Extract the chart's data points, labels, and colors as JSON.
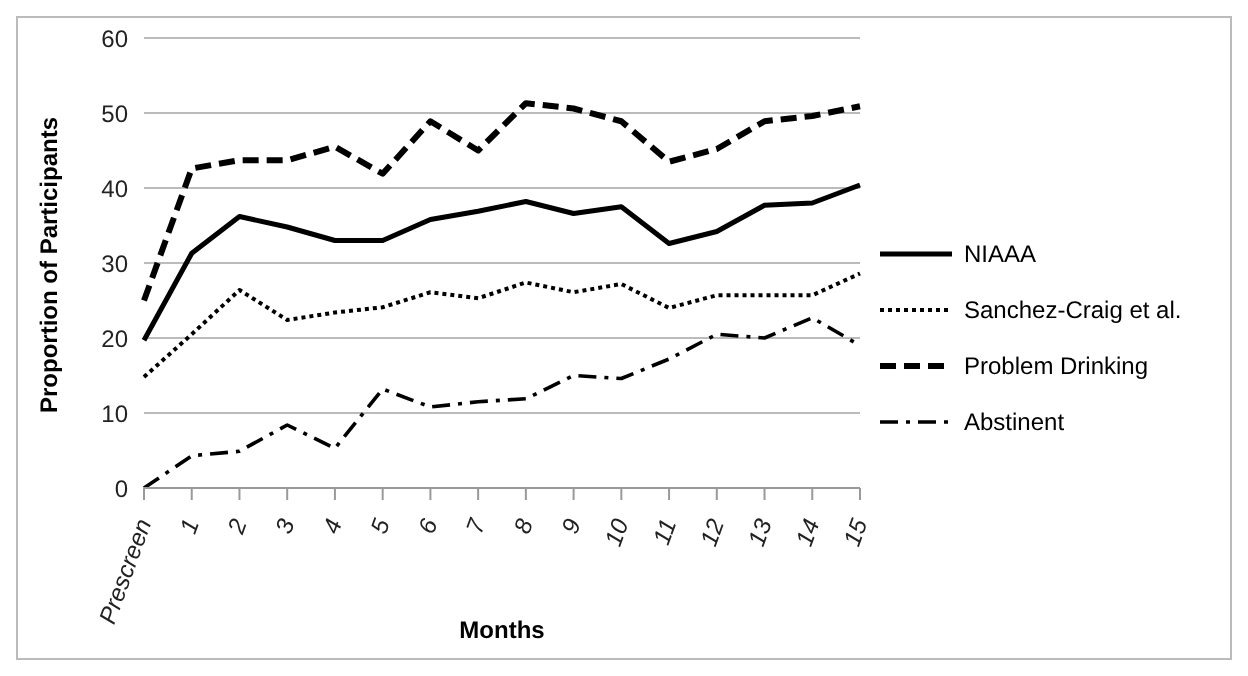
{
  "chart_data": {
    "type": "line",
    "xlabel": "Months",
    "ylabel": "Proportion of Participants",
    "categories": [
      "Prescreen",
      "1",
      "2",
      "3",
      "4",
      "5",
      "6",
      "7",
      "8",
      "9",
      "10",
      "11",
      "12",
      "13",
      "14",
      "15"
    ],
    "series": [
      {
        "name": "NIAAA",
        "color": "#000000",
        "line_style": "solid",
        "values": [
          19.7,
          31.3,
          36.2,
          34.8,
          33,
          33,
          35.8,
          36.9,
          38.2,
          36.6,
          37.5,
          32.6,
          34.2,
          37.7,
          38,
          40.4
        ]
      },
      {
        "name": "Sanchez-Craig et al.",
        "color": "#000000",
        "line_style": "dotted",
        "values": [
          14.8,
          20.5,
          26.4,
          22.4,
          23.4,
          24.1,
          26.1,
          25.3,
          27.4,
          26.1,
          27.2,
          24,
          25.7,
          25.7,
          25.7,
          28.6
        ]
      },
      {
        "name": "Problem Drinking",
        "color": "#000000",
        "line_style": "dashed",
        "values": [
          25,
          42.6,
          43.7,
          43.7,
          45.5,
          41.9,
          48.9,
          45,
          51.3,
          50.6,
          48.9,
          43.5,
          45.2,
          48.9,
          49.6,
          50.9
        ]
      },
      {
        "name": "Abstinent",
        "color": "#000000",
        "line_style": "dashdot",
        "values": [
          0,
          4.3,
          4.9,
          8.4,
          5.3,
          13.2,
          10.8,
          11.5,
          11.9,
          15,
          14.6,
          17.2,
          20.5,
          20,
          22.7,
          19
        ]
      }
    ],
    "ylim": [
      0,
      60
    ],
    "yticks": [
      0,
      10,
      20,
      30,
      40,
      50,
      60
    ],
    "grid": "y",
    "legend": "right",
    "marker": "none"
  }
}
